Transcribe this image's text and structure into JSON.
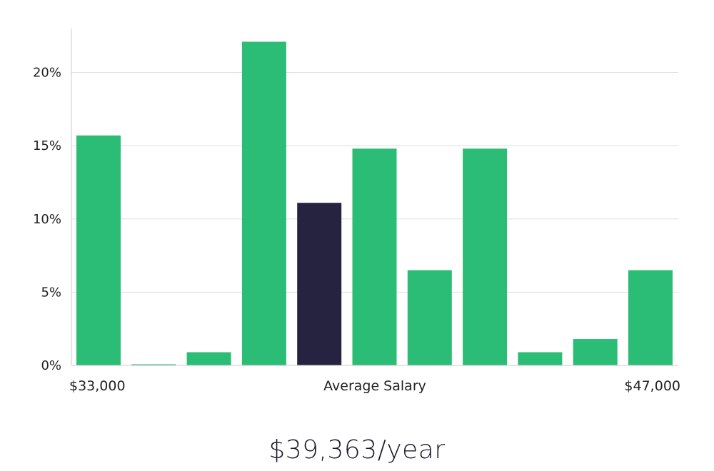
{
  "chart_data": {
    "type": "bar",
    "categories": [
      "1",
      "2",
      "3",
      "4",
      "5",
      "6",
      "7",
      "8",
      "9",
      "10",
      "11"
    ],
    "values": [
      15.7,
      0.05,
      0.9,
      22.1,
      11.1,
      14.8,
      6.5,
      14.8,
      0.9,
      1.8,
      6.5
    ],
    "highlight_index": 4,
    "colors": {
      "bar": "#2bbd76",
      "highlight": "#262341",
      "grid": "#dddddd",
      "axis": "#cccccc"
    },
    "ylim": [
      0,
      23
    ],
    "yticks": [
      0,
      5,
      10,
      15,
      20
    ],
    "ytick_suffix": "%",
    "x_min_label": "$33,000",
    "x_max_label": "$47,000",
    "xlabel": "Average Salary",
    "grid": true
  },
  "summary": {
    "average_salary_text": "$39,363/year"
  }
}
